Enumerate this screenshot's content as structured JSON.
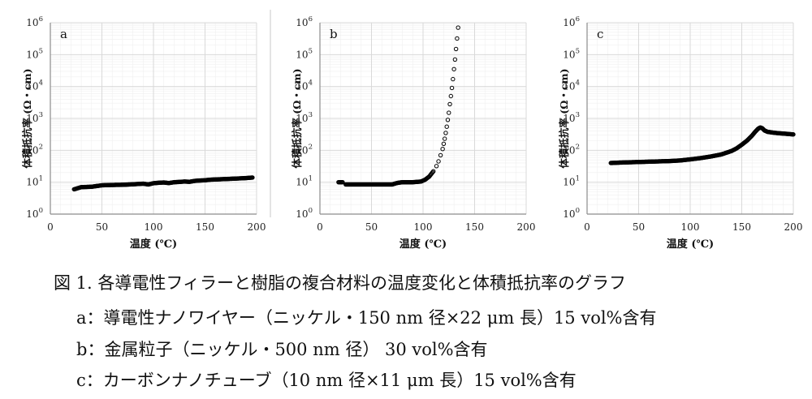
{
  "figure": {
    "caption_title": "図 1. 各導電性フィラーと樹脂の複合材料の温度変化と体積抵抗率のグラフ",
    "caption_lines": [
      "a：導電性ナノワイヤー（ニッケル・150 nm 径×22 μm 長）15 vol%含有",
      "b：金属粒子（ニッケル・500 nm 径） 30 vol%含有",
      "c：カーボンナノチューブ（10 nm 径×11 μm 長）15 vol%含有"
    ]
  },
  "colors": {
    "marker": "#000000",
    "grid": "#d9d9d9",
    "minor_grid": "#efefef",
    "axis": "#8c8c8c",
    "divider": "#c8c8c8"
  },
  "chart_data": [
    {
      "type": "scatter",
      "panel_label": "a",
      "xlabel": "温度 (℃)",
      "ylabel": "体積抵抗率 (Ω・cm)",
      "xlim": [
        0,
        200
      ],
      "ylim": [
        1,
        1000000
      ],
      "yscale": "log",
      "xticks": [
        "0",
        "50",
        "100",
        "150",
        "200"
      ],
      "yticks": [
        "10^0",
        "10^1",
        "10^2",
        "10^3",
        "10^4",
        "10^5",
        "10^6"
      ],
      "grid": true,
      "series": [
        {
          "x": [
            23,
            30,
            40,
            50,
            60,
            70,
            80,
            90,
            95,
            100,
            105,
            110,
            115,
            120,
            125,
            130,
            135,
            140,
            145,
            150,
            155,
            160,
            170,
            180,
            190,
            196
          ],
          "y": [
            6.0,
            7.0,
            7.2,
            8.0,
            8.2,
            8.3,
            8.6,
            9.0,
            8.5,
            9.3,
            9.6,
            9.8,
            9.4,
            10.0,
            10.2,
            10.5,
            10.3,
            11.0,
            11.3,
            11.5,
            12.0,
            12.2,
            12.6,
            13.0,
            13.5,
            14.0
          ]
        }
      ]
    },
    {
      "type": "scatter",
      "panel_label": "b",
      "xlabel": "温度 (℃)",
      "ylabel": "体積抵抗率 (Ω・cm)",
      "xlim": [
        0,
        200
      ],
      "ylim": [
        1,
        1000000
      ],
      "yscale": "log",
      "xticks": [
        "0",
        "50",
        "100",
        "150",
        "200"
      ],
      "yticks": [
        "10^0",
        "10^1",
        "10^2",
        "10^3",
        "10^4",
        "10^5",
        "10^6"
      ],
      "grid": true,
      "series": [
        {
          "x": [
            18,
            22,
            25,
            30,
            40,
            50,
            60,
            70,
            75,
            80,
            90,
            98,
            102,
            106,
            110,
            113,
            115,
            117,
            119,
            120,
            121,
            122,
            123,
            124,
            125,
            126,
            127,
            128,
            129,
            130,
            131,
            132,
            133,
            134
          ],
          "y": [
            10,
            10,
            8.5,
            8.5,
            8.5,
            8.5,
            8.5,
            8.5,
            9.5,
            10,
            10,
            10.5,
            12,
            15,
            22,
            32,
            45,
            70,
            110,
            160,
            230,
            350,
            550,
            900,
            1500,
            2800,
            5000,
            9000,
            17000,
            35000,
            70000,
            150000,
            320000,
            700000
          ]
        }
      ]
    },
    {
      "type": "scatter",
      "panel_label": "c",
      "xlabel": "温度 (℃)",
      "ylabel": "体積抵抗率 (Ω・cm)",
      "xlim": [
        0,
        200
      ],
      "ylim": [
        1,
        1000000
      ],
      "yscale": "log",
      "xticks": [
        "0",
        "50",
        "100",
        "150",
        "200"
      ],
      "yticks": [
        "10^0",
        "10^1",
        "10^2",
        "10^3",
        "10^4",
        "10^5",
        "10^6"
      ],
      "grid": true,
      "series": [
        {
          "x": [
            23,
            30,
            40,
            50,
            60,
            70,
            80,
            90,
            100,
            110,
            120,
            130,
            140,
            145,
            150,
            155,
            160,
            163,
            166,
            168,
            170,
            172,
            175,
            180,
            185,
            190,
            195,
            200
          ],
          "y": [
            40,
            41,
            42,
            43,
            44,
            45,
            46,
            48,
            52,
            57,
            64,
            74,
            95,
            115,
            150,
            200,
            290,
            380,
            480,
            520,
            490,
            420,
            380,
            360,
            345,
            335,
            325,
            315
          ]
        }
      ]
    }
  ]
}
